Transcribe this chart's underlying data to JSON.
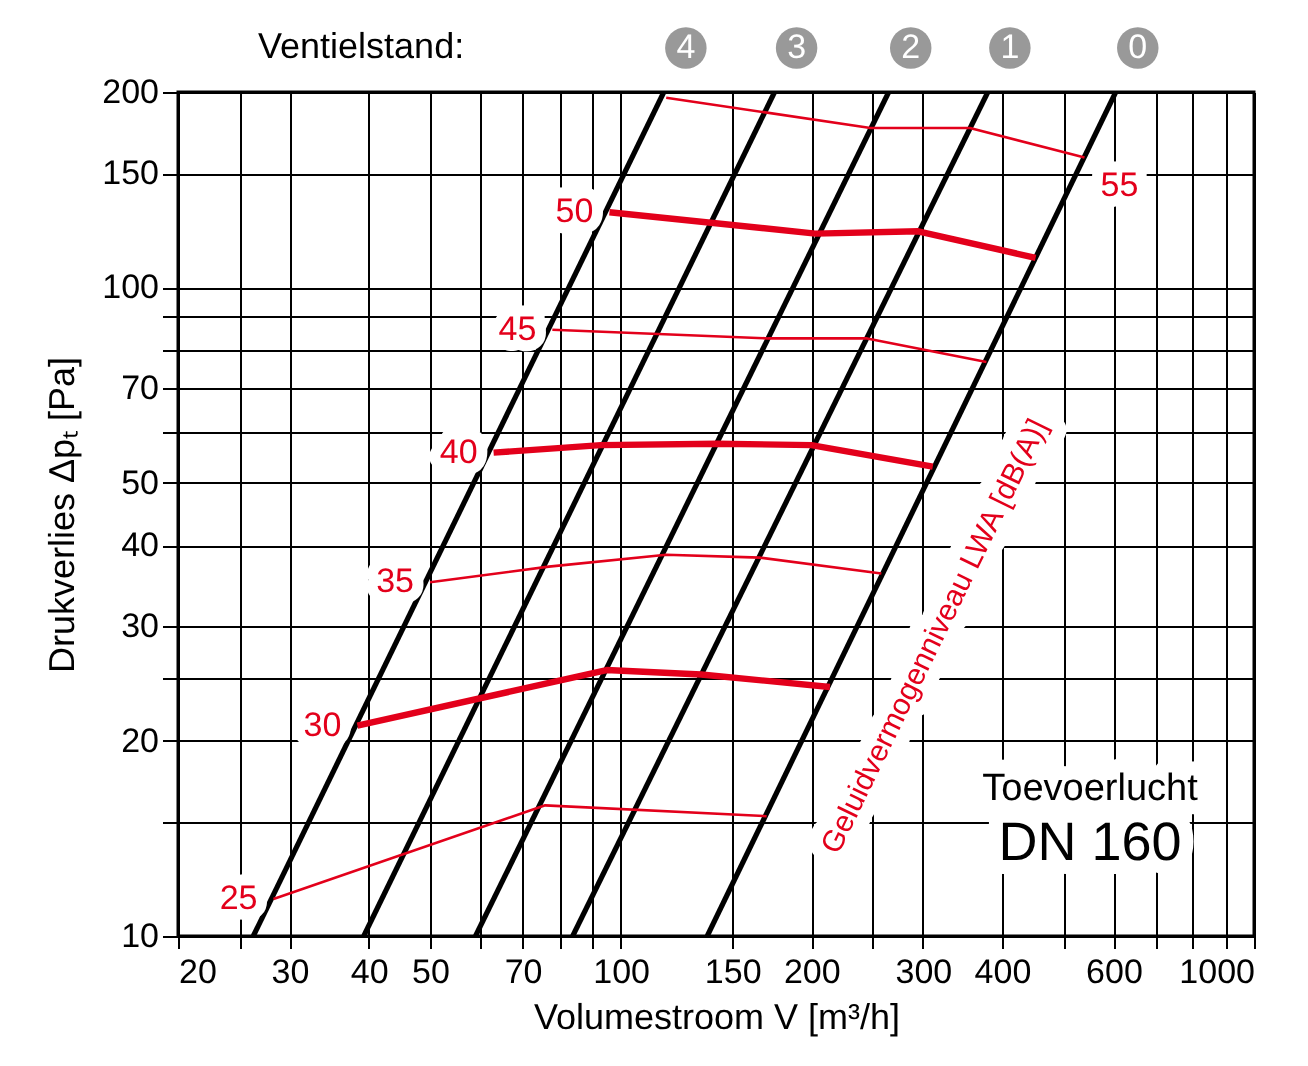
{
  "chart_data": {
    "type": "line",
    "xlabel": "Volumestroom V [m³/h]",
    "ylabel": "Drukverlies Δpₜ [Pa]",
    "log": "xy",
    "grid": true,
    "marker": "none",
    "line_style": "solid",
    "xlim": [
      20,
      1000
    ],
    "ylim": [
      10,
      200
    ],
    "xticks": [
      20,
      {
        "value": 25,
        "label": null
      },
      30,
      40,
      50,
      {
        "value": 60,
        "label": null
      },
      70,
      {
        "value": 80,
        "label": null
      },
      {
        "value": 90,
        "label": null
      },
      100,
      150,
      200,
      {
        "value": 250,
        "label": null
      },
      300,
      400,
      {
        "value": 500,
        "label": null
      },
      600,
      {
        "value": 700,
        "label": null
      },
      {
        "value": 800,
        "label": null
      },
      {
        "value": 900,
        "label": null
      },
      1000
    ],
    "yticks": [
      10,
      {
        "value": 15,
        "label": null
      },
      20,
      {
        "value": 25,
        "label": null
      },
      30,
      40,
      50,
      {
        "value": 60,
        "label": null
      },
      70,
      {
        "value": 80,
        "label": null
      },
      {
        "value": 90,
        "label": null
      },
      100,
      150,
      200
    ],
    "series": [
      {
        "name": "4",
        "color": "#000000",
        "x": [
          26.3,
          117
        ],
        "values": [
          10,
          200
        ]
      },
      {
        "name": "3",
        "color": "#000000",
        "x": [
          39.3,
          175
        ],
        "values": [
          10,
          200
        ]
      },
      {
        "name": "2",
        "color": "#000000",
        "x": [
          59,
          265
        ],
        "values": [
          10,
          200
        ]
      },
      {
        "name": "1",
        "color": "#000000",
        "x": [
          84,
          380
        ],
        "values": [
          10,
          200
        ]
      },
      {
        "name": "0",
        "color": "#000000",
        "x": [
          137,
          605
        ],
        "values": [
          10,
          200
        ]
      },
      {
        "color": "#e3001b",
        "x": [
          28.3,
          76,
          170
        ],
        "values": [
          11.4,
          15.9,
          15.3
        ]
      },
      {
        "color": "#e3001b",
        "x": [
          38.4,
          95,
          134,
          214
        ],
        "values": [
          21.1,
          25.7,
          25.3,
          24.2
        ]
      },
      {
        "color": "#e3001b",
        "x": [
          50,
          77,
          118,
          166,
          258
        ],
        "values": [
          35.1,
          37.1,
          38.7,
          38.3,
          36.2
        ]
      },
      {
        "color": "#e3001b",
        "x": [
          63,
          93,
          142,
          200,
          311
        ],
        "values": [
          55.6,
          57.1,
          57.4,
          57.1,
          52.9
        ]
      },
      {
        "color": "#e3001b",
        "x": [
          78,
          171,
          245,
          378
        ],
        "values": [
          86,
          83.4,
          83.4,
          76.7
        ]
      },
      {
        "color": "#e3001b",
        "x": [
          96,
          203,
          295,
          452
        ],
        "values": [
          130.5,
          121,
          122,
          111
        ]
      },
      {
        "color": "#e3001b",
        "x": [
          118,
          248,
          356,
          540
        ],
        "values": [
          196,
          176,
          176,
          158.5
        ]
      }
    ],
    "annotations": [
      "Ventielstand:",
      "Geluidvermogenniveau LWA [dB(A)]",
      "Toevoerlucht",
      "DN 160",
      {
        "text": "25",
        "x": 28.3,
        "y": 11.4
      },
      {
        "text": "30",
        "x": 38.4,
        "y": 21.1
      },
      {
        "text": "35",
        "x": 50,
        "y": 35.1
      },
      {
        "text": "40",
        "x": 63,
        "y": 55.6
      },
      {
        "text": "45",
        "x": 78,
        "y": 86
      },
      {
        "text": "50",
        "x": 96,
        "y": 130.5
      },
      {
        "text": "55",
        "x": 540,
        "y": 158.5
      }
    ]
  }
}
